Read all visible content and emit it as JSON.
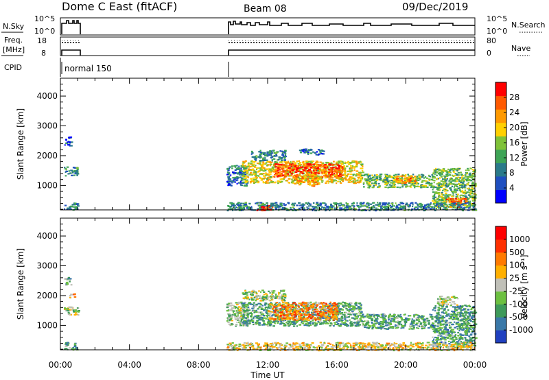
{
  "header": {
    "station": "Dome C East (fitACF)",
    "beam": "Beam 08",
    "date": "09/Dec/2019"
  },
  "top_panels": {
    "nsky_label": "N.Sky",
    "nsky_ticks": [
      "10^5",
      "10^0"
    ],
    "nsearch_label": "N.Search",
    "nsearch_ticks": [
      "10^5",
      "10^0"
    ],
    "freq_label": "Freq.",
    "freq_unit": "[MHz]",
    "freq_ticks": [
      "18",
      "8"
    ],
    "nave_label": "Nave",
    "nave_ticks": [
      "80",
      "0"
    ],
    "cpid_label": "CPID",
    "cpid_value": "normal 150"
  },
  "chart_data": [
    {
      "type": "heatmap",
      "panel": "power",
      "ylabel": "Slant Range [km]",
      "ylim": [
        180,
        4600
      ],
      "yticks": [
        1000,
        2000,
        3000,
        4000
      ],
      "xlabel": "Time UT",
      "xlim": [
        0,
        24
      ],
      "xticks": [
        "00:00",
        "04:00",
        "08:00",
        "12:00",
        "16:00",
        "20:00",
        "00:00"
      ],
      "colorbar": {
        "label": "Power [dB]",
        "ticks": [
          "4",
          "8",
          "12",
          "16",
          "20",
          "24",
          "28"
        ],
        "range": [
          0,
          32
        ],
        "colors": [
          "#0000ff",
          "#1f4fc0",
          "#2a7a8a",
          "#3ea456",
          "#7fc238",
          "#ffd000",
          "#ff9a00",
          "#ff5a00",
          "#ff0000"
        ]
      },
      "regions": [
        {
          "t0": 0.2,
          "t1": 1.0,
          "r0": 1350,
          "r1": 1650,
          "level": 0.35
        },
        {
          "t0": 0.2,
          "t1": 0.6,
          "r0": 2350,
          "r1": 2650,
          "level": 0.2
        },
        {
          "t0": 0.2,
          "t1": 1.0,
          "r0": 200,
          "r1": 450,
          "level": 0.25
        },
        {
          "t0": 9.6,
          "t1": 10.8,
          "r0": 1000,
          "r1": 1700,
          "level": 0.25
        },
        {
          "t0": 10.5,
          "t1": 17.5,
          "r0": 1100,
          "r1": 1850,
          "level": 0.6
        },
        {
          "t0": 12.3,
          "t1": 16.3,
          "r0": 1300,
          "r1": 1750,
          "level": 0.85
        },
        {
          "t0": 13.5,
          "t1": 15.0,
          "r0": 1000,
          "r1": 1400,
          "level": 0.7
        },
        {
          "t0": 17.5,
          "t1": 21.5,
          "r0": 950,
          "r1": 1400,
          "level": 0.45
        },
        {
          "t0": 19.3,
          "t1": 20.5,
          "r0": 1100,
          "r1": 1350,
          "level": 0.75
        },
        {
          "t0": 21.5,
          "t1": 24.0,
          "r0": 300,
          "r1": 1600,
          "level": 0.45
        },
        {
          "t0": 22.3,
          "t1": 23.5,
          "r0": 300,
          "r1": 600,
          "level": 0.8
        },
        {
          "t0": 9.6,
          "t1": 24.0,
          "r0": 180,
          "r1": 450,
          "level": 0.3
        },
        {
          "t0": 11.3,
          "t1": 12.3,
          "r0": 180,
          "r1": 350,
          "level": 0.95
        },
        {
          "t0": 13.8,
          "t1": 15.2,
          "r0": 2050,
          "r1": 2250,
          "level": 0.2
        },
        {
          "t0": 11.0,
          "t1": 13.0,
          "r0": 1850,
          "r1": 2200,
          "level": 0.3
        }
      ]
    },
    {
      "type": "heatmap",
      "panel": "velocity",
      "ylabel": "Slant Range [km]",
      "ylim": [
        180,
        4600
      ],
      "yticks": [
        1000,
        2000,
        3000,
        4000
      ],
      "xlabel": "Time UT",
      "xlim": [
        0,
        24
      ],
      "xticks": [
        "00:00",
        "04:00",
        "08:00",
        "12:00",
        "16:00",
        "20:00",
        "00:00"
      ],
      "colorbar": {
        "label": "Velocity [m s⁻¹]",
        "ticks": [
          "1000",
          "500",
          "100",
          "25",
          "-25",
          "-100",
          "-500",
          "-1000"
        ],
        "colors": [
          "#2040c0",
          "#3a78a8",
          "#3e9a5a",
          "#6cc040",
          "#c0c0b8",
          "#ffb000",
          "#ff7a00",
          "#ff3000",
          "#ff0000"
        ]
      },
      "regions": [
        {
          "t0": 0.2,
          "t1": 1.0,
          "r0": 1350,
          "r1": 1650,
          "level": 0.45
        },
        {
          "t0": 0.2,
          "t1": 0.6,
          "r0": 2350,
          "r1": 2650,
          "level": 0.35
        },
        {
          "t0": 0.5,
          "t1": 0.8,
          "r0": 1950,
          "r1": 2100,
          "level": 0.65
        },
        {
          "t0": 0.2,
          "t1": 1.0,
          "r0": 200,
          "r1": 450,
          "level": 0.3
        },
        {
          "t0": 9.6,
          "t1": 10.8,
          "r0": 1000,
          "r1": 1800,
          "level": 0.4
        },
        {
          "t0": 10.5,
          "t1": 17.5,
          "r0": 1000,
          "r1": 1800,
          "level": 0.3
        },
        {
          "t0": 12.0,
          "t1": 16.0,
          "r0": 1200,
          "r1": 1800,
          "level": 0.7
        },
        {
          "t0": 17.5,
          "t1": 21.5,
          "r0": 900,
          "r1": 1400,
          "level": 0.3
        },
        {
          "t0": 21.5,
          "t1": 24.0,
          "r0": 300,
          "r1": 1700,
          "level": 0.28
        },
        {
          "t0": 9.6,
          "t1": 24.0,
          "r0": 180,
          "r1": 450,
          "level": 0.55
        },
        {
          "t0": 10.5,
          "t1": 13.0,
          "r0": 1850,
          "r1": 2200,
          "level": 0.45
        },
        {
          "t0": 21.8,
          "t1": 23.0,
          "r0": 1700,
          "r1": 2000,
          "level": 0.45
        }
      ]
    }
  ]
}
